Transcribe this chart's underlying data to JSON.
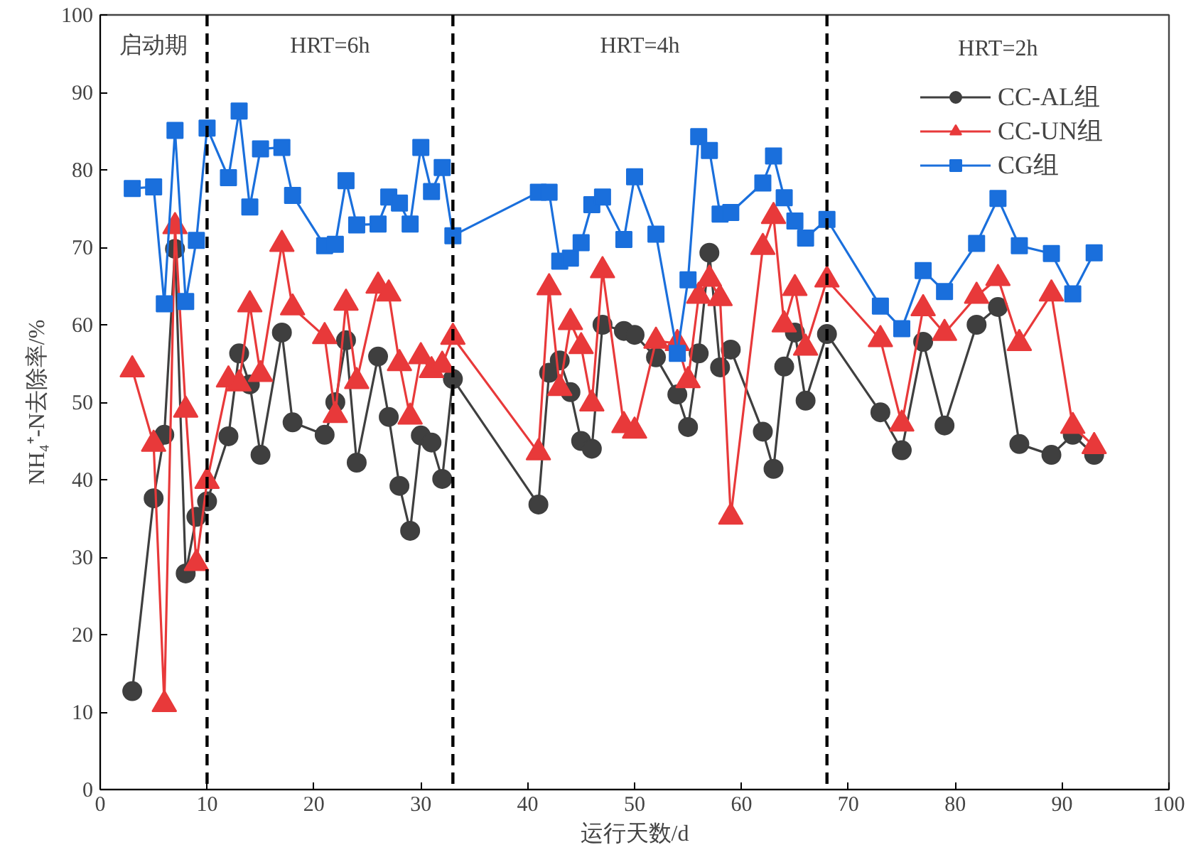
{
  "chart_data": {
    "type": "line",
    "xlabel": "运行天数/d",
    "ylabel": "NH₄⁺-N去除率/%",
    "x": [
      3,
      5,
      6,
      7,
      8,
      9,
      10,
      12,
      13,
      14,
      15,
      17,
      18,
      21,
      22,
      23,
      24,
      26,
      27,
      28,
      29,
      30,
      31,
      32,
      33,
      41,
      42,
      43,
      44,
      45,
      46,
      47,
      49,
      50,
      52,
      54,
      55,
      56,
      57,
      58,
      59,
      62,
      63,
      64,
      65,
      66,
      68,
      73,
      75,
      77,
      79,
      82,
      84,
      86,
      89,
      91,
      93
    ],
    "series": [
      {
        "name": "CC-AL组",
        "color": "#3f3f3f",
        "marker": "circle",
        "values": [
          12.7,
          37.6,
          45.8,
          69.8,
          27.9,
          35.2,
          37.2,
          45.6,
          56.3,
          52.3,
          43.2,
          59,
          47.4,
          45.8,
          50,
          58,
          42.2,
          55.9,
          48.1,
          39.2,
          33.4,
          45.7,
          44.8,
          40.1,
          53,
          36.8,
          53.8,
          55.4,
          51.3,
          45,
          44,
          60,
          59.2,
          58.7,
          55.8,
          51,
          46.8,
          56.3,
          69.3,
          54.5,
          56.8,
          46.2,
          41.4,
          54.6,
          59,
          50.2,
          58.8,
          48.7,
          43.8,
          57.8,
          47,
          60,
          62.3,
          44.6,
          43.2,
          45.8,
          43.2
        ]
      },
      {
        "name": "CC-UN组",
        "color": "#e8393a",
        "marker": "triangle",
        "values": [
          54.2,
          44.6,
          11,
          72.7,
          49,
          29.2,
          39.8,
          52.9,
          52.4,
          62.6,
          53.6,
          70.4,
          62.2,
          58.5,
          48.3,
          62.8,
          52.7,
          65,
          64,
          55,
          48.1,
          55.9,
          54.1,
          54.8,
          58.4,
          43.5,
          64.8,
          51.8,
          60.3,
          57.2,
          49.8,
          67,
          47,
          46.3,
          57.9,
          57.6,
          52.8,
          63.7,
          65.9,
          63.4,
          35.2,
          70,
          74,
          60,
          64.7,
          57,
          65.8,
          58.1,
          47.2,
          62.1,
          58.9,
          63.7,
          66,
          57.6,
          64,
          46.9,
          44.3
        ]
      },
      {
        "name": "CG组",
        "color": "#1a6fdc",
        "marker": "square",
        "values": [
          77.6,
          77.8,
          62.7,
          85.1,
          63,
          70.9,
          85.4,
          79,
          87.6,
          75.2,
          82.7,
          82.9,
          76.7,
          70.2,
          70.4,
          78.6,
          72.9,
          73,
          76.5,
          75.7,
          73,
          82.9,
          77.2,
          80.3,
          71.5,
          77.1,
          77.1,
          68.2,
          68.6,
          70.6,
          75.5,
          76.5,
          71,
          79.1,
          71.7,
          56.3,
          65.8,
          84.3,
          82.5,
          74.3,
          74.5,
          78.3,
          81.8,
          76.4,
          73.4,
          71.2,
          73.6,
          62.4,
          59.5,
          67,
          64.3,
          70.5,
          76.3,
          70.2,
          69.2,
          64,
          69.3
        ]
      }
    ],
    "xlim": [
      0,
      100
    ],
    "xticks": [
      0,
      10,
      20,
      30,
      40,
      50,
      60,
      70,
      80,
      90,
      100
    ],
    "ylim": [
      0,
      100
    ],
    "yticks": [
      0,
      10,
      20,
      30,
      40,
      50,
      60,
      70,
      80,
      90,
      100
    ],
    "ref_lines": [
      {
        "axis": "x",
        "value": 10,
        "label": null,
        "color": "#000000",
        "line_style": "dashed"
      },
      {
        "axis": "x",
        "value": 33,
        "label": null,
        "color": "#000000",
        "line_style": "dashed"
      },
      {
        "axis": "x",
        "value": 68,
        "label": null,
        "color": "#000000",
        "line_style": "dashed"
      }
    ],
    "annotations": [
      "启动期",
      "HRT=6h",
      "HRT=4h",
      "HRT=2h"
    ],
    "grid": false,
    "legend": "top right",
    "line_style": "solid"
  }
}
